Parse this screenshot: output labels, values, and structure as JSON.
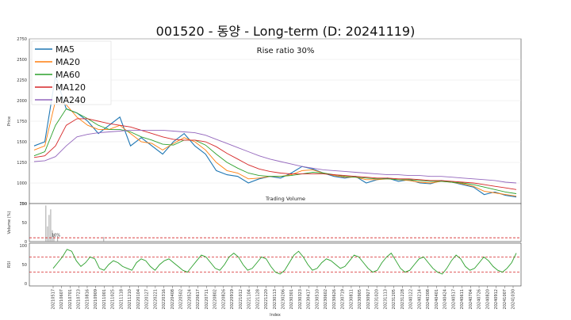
{
  "chart_data": {
    "type": "line",
    "title": "001520 - 동양 - Long-term (D: 20241119)",
    "annotation": "Rise ratio 30%",
    "legend": {
      "placement": "top-left",
      "entries": [
        "MA5",
        "MA20",
        "MA60",
        "MA120",
        "MA240"
      ]
    },
    "colors": {
      "MA5": "#1f77b4",
      "MA20": "#ff7f0e",
      "MA60": "#2ca02c",
      "MA120": "#d62728",
      "MA240": "#9467bd",
      "price": "#000000",
      "rsi": "#2ca02c",
      "threshold": "#d62728",
      "volume": "#8c8c8c"
    },
    "price_panel": {
      "ylabel": "Price",
      "ylim": [
        750,
        2750
      ],
      "yticks": [
        750,
        1000,
        1250,
        1500,
        1750,
        2000,
        2250,
        2500,
        2750
      ],
      "grid": true,
      "subtitle": "Trading Volume",
      "x": [
        0,
        20,
        40,
        60,
        80,
        100,
        120,
        140,
        160,
        180,
        200,
        220,
        240,
        260,
        280,
        300,
        320,
        340,
        360,
        380,
        400,
        420,
        440,
        460,
        480,
        500,
        520,
        540,
        560,
        580,
        600,
        620,
        640,
        660,
        680,
        700,
        720,
        740,
        760,
        780,
        800,
        820,
        840,
        860,
        880,
        900
      ],
      "series": [
        {
          "name": "MA5",
          "values": [
            1450,
            1500,
            2300,
            1900,
            1850,
            1750,
            1600,
            1700,
            1800,
            1450,
            1550,
            1450,
            1350,
            1500,
            1600,
            1450,
            1350,
            1150,
            1100,
            1080,
            1000,
            1050,
            1080,
            1060,
            1120,
            1200,
            1170,
            1120,
            1080,
            1060,
            1080,
            1000,
            1040,
            1060,
            1020,
            1040,
            1000,
            990,
            1030,
            1010,
            980,
            950,
            860,
            890,
            850,
            830
          ]
        },
        {
          "name": "MA20",
          "values": [
            1400,
            1450,
            2000,
            1950,
            1800,
            1700,
            1650,
            1650,
            1700,
            1600,
            1500,
            1480,
            1400,
            1480,
            1550,
            1500,
            1400,
            1250,
            1150,
            1120,
            1050,
            1060,
            1080,
            1080,
            1100,
            1150,
            1160,
            1120,
            1090,
            1070,
            1070,
            1040,
            1040,
            1050,
            1040,
            1030,
            1010,
            1000,
            1020,
            1010,
            990,
            960,
            900,
            880,
            860,
            840
          ]
        },
        {
          "name": "MA60",
          "values": [
            1330,
            1380,
            1700,
            1900,
            1850,
            1780,
            1700,
            1650,
            1650,
            1620,
            1560,
            1520,
            1470,
            1460,
            1520,
            1520,
            1460,
            1350,
            1250,
            1180,
            1120,
            1090,
            1080,
            1080,
            1090,
            1110,
            1130,
            1120,
            1100,
            1080,
            1070,
            1060,
            1050,
            1050,
            1040,
            1040,
            1030,
            1020,
            1020,
            1010,
            1000,
            980,
            950,
            920,
            890,
            870
          ]
        },
        {
          "name": "MA120",
          "values": [
            1310,
            1330,
            1450,
            1700,
            1780,
            1780,
            1750,
            1720,
            1700,
            1680,
            1640,
            1600,
            1560,
            1530,
            1520,
            1520,
            1500,
            1440,
            1360,
            1290,
            1220,
            1170,
            1140,
            1120,
            1110,
            1110,
            1110,
            1110,
            1100,
            1090,
            1080,
            1070,
            1060,
            1060,
            1050,
            1050,
            1040,
            1030,
            1030,
            1020,
            1010,
            1000,
            980,
            960,
            940,
            920
          ]
        },
        {
          "name": "MA240",
          "values": [
            1260,
            1270,
            1320,
            1450,
            1560,
            1590,
            1610,
            1620,
            1630,
            1640,
            1640,
            1640,
            1640,
            1630,
            1620,
            1610,
            1580,
            1530,
            1480,
            1430,
            1380,
            1330,
            1290,
            1260,
            1230,
            1200,
            1180,
            1160,
            1150,
            1140,
            1130,
            1120,
            1110,
            1100,
            1100,
            1090,
            1090,
            1080,
            1080,
            1070,
            1060,
            1050,
            1040,
            1030,
            1010,
            1000
          ]
        }
      ]
    },
    "volume_panel": {
      "ylabel": "Volume (%)",
      "ylim": [
        0,
        100
      ],
      "yticks": [
        0,
        50,
        100
      ],
      "threshold": 10,
      "threshold_label": "10%",
      "spikes": [
        {
          "x": 22,
          "value": 95
        },
        {
          "x": 25,
          "value": 40
        },
        {
          "x": 28,
          "value": 70
        },
        {
          "x": 31,
          "value": 85
        },
        {
          "x": 34,
          "value": 30
        },
        {
          "x": 37,
          "value": 20
        },
        {
          "x": 44,
          "value": 15
        },
        {
          "x": 130,
          "value": 12
        }
      ]
    },
    "rsi_panel": {
      "ylabel": "RSI",
      "ylim": [
        0,
        100
      ],
      "yticks": [
        0,
        50,
        100
      ],
      "upper": 70,
      "lower": 30,
      "values": [
        40,
        55,
        70,
        90,
        85,
        60,
        45,
        55,
        70,
        65,
        40,
        35,
        50,
        60,
        55,
        45,
        40,
        35,
        55,
        65,
        60,
        45,
        35,
        50,
        60,
        65,
        55,
        45,
        35,
        30,
        45,
        60,
        75,
        70,
        55,
        40,
        35,
        50,
        70,
        80,
        70,
        50,
        35,
        40,
        55,
        70,
        65,
        45,
        30,
        25,
        35,
        55,
        75,
        85,
        70,
        50,
        35,
        40,
        55,
        65,
        60,
        50,
        40,
        45,
        60,
        75,
        70,
        55,
        40,
        30,
        35,
        55,
        70,
        80,
        60,
        40,
        30,
        35,
        50,
        65,
        70,
        55,
        40,
        30,
        25,
        40,
        60,
        75,
        65,
        45,
        35,
        40,
        55,
        70,
        60,
        45,
        35,
        30,
        40,
        55,
        80
      ]
    },
    "x_axis": {
      "xlabel": "Index",
      "tick_labels": [
        "20210517",
        "20210607",
        "20210701",
        "20210723",
        "20210816",
        "20210909",
        "20211001",
        "20211025",
        "20211118",
        "20211210",
        "20220104",
        "20220127",
        "20220221",
        "20220316",
        "20220408",
        "20220502",
        "20220524",
        "20220617",
        "20220711",
        "20220802",
        "20220826",
        "20220919",
        "20221012",
        "20221104",
        "20221128",
        "20221220",
        "20230113",
        "20230206",
        "20230301",
        "20230323",
        "20230417",
        "20230510",
        "20230602",
        "20230626",
        "20230719",
        "20230811",
        "20230905",
        "20230927",
        "20231020",
        "20231113",
        "20231205",
        "20231228",
        "20240122",
        "20240214",
        "20240308",
        "20240401",
        "20240424",
        "20240517",
        "20240611",
        "20240704",
        "20240726",
        "20240820",
        "20240912",
        "20241007",
        "20241030"
      ]
    }
  }
}
